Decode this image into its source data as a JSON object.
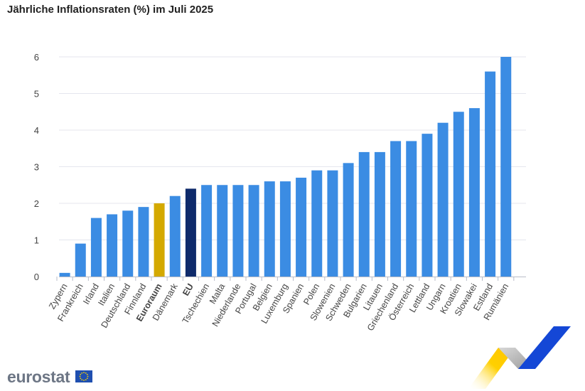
{
  "chart_data": {
    "type": "bar",
    "title": "Jährliche Inflationsraten (%) im Juli 2025",
    "xlabel": "",
    "ylabel": "",
    "ylim": [
      0,
      6
    ],
    "yticks": [
      0,
      1,
      2,
      3,
      4,
      5,
      6
    ],
    "grid": true,
    "categories": [
      "Zypern",
      "Frankreich",
      "Irland",
      "Italien",
      "Deutschland",
      "Finnland",
      "Euroraum",
      "Dänemark",
      "EU",
      "Tschechien",
      "Malta",
      "Niederlande",
      "Portugal",
      "Belgien",
      "Luxemburg",
      "Spanien",
      "Polen",
      "Slowenien",
      "Schweden",
      "Bulgarien",
      "Litauen",
      "Griechenland",
      "Österreich",
      "Lettland",
      "Ungarn",
      "Kroatien",
      "Slowakei",
      "Estland",
      "Rumänien"
    ],
    "values": [
      0.1,
      0.9,
      1.6,
      1.7,
      1.8,
      1.9,
      2.0,
      2.2,
      2.4,
      2.5,
      2.5,
      2.5,
      2.5,
      2.6,
      2.6,
      2.7,
      2.9,
      2.9,
      3.1,
      3.4,
      3.4,
      3.7,
      3.7,
      3.9,
      4.2,
      4.5,
      4.6,
      5.6,
      6.0
    ],
    "highlight": {
      "Euroraum": "#d4a900",
      "EU": "#0e2a6b"
    },
    "bold_categories": [
      "Euroraum",
      "EU"
    ],
    "bar_color": "#3b8ce3"
  },
  "branding": {
    "logo_text": "eurostat"
  }
}
